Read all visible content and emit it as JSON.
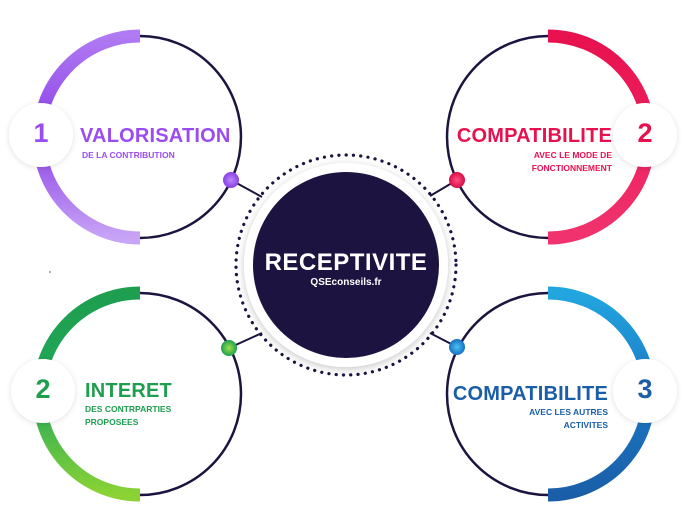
{
  "center": {
    "title": "RECEPTIVITE",
    "subtitle": "QSEconseils.fr",
    "color": "#1d1340"
  },
  "items": [
    {
      "number": "1",
      "title": "VALORISATION",
      "subtitle_lines": [
        "DE LA CONTRIBUTION"
      ],
      "color": "#9b4cf0",
      "gradient_end": "#c79af5"
    },
    {
      "number": "2",
      "title": "COMPATIBILITE",
      "subtitle_lines": [
        "AVEC LE MODE DE",
        "FONCTIONNEMENT"
      ],
      "color": "#e8114f",
      "gradient_end": "#f65d8d"
    },
    {
      "number": "2",
      "title": "INTERET",
      "subtitle_lines": [
        "DES CONTRPARTIES",
        "PROPOSEES"
      ],
      "color": "#1e9e4f",
      "gradient_end": "#7ad23a"
    },
    {
      "number": "3",
      "title": "COMPATIBILITE",
      "subtitle_lines": [
        "AVEC LES AUTRES",
        "ACTIVITES"
      ],
      "color": "#1a5ea8",
      "gradient_end": "#22a6e0"
    }
  ],
  "colors": {
    "ring_dark": "#1d1340",
    "dots": "#1d1340"
  }
}
